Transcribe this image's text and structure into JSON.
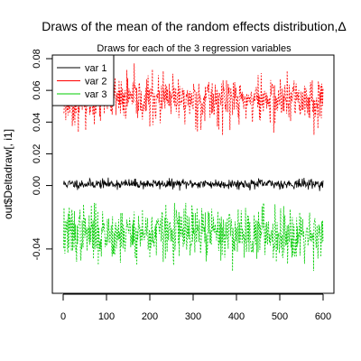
{
  "chart_data": {
    "type": "line",
    "title": "Draws of the mean of the random effects distribution,Δ",
    "subtitle": "Draws for each of the 3 regression variables",
    "xlabel": "",
    "ylabel": "out$Deltadraw[, i1]",
    "xlim": [
      0,
      600
    ],
    "ylim": [
      -0.06,
      0.08
    ],
    "x_ticks": [
      0,
      100,
      200,
      300,
      400,
      500,
      600
    ],
    "x_tick_labels": [
      "0",
      "100",
      "200",
      "300",
      "400",
      "500",
      "600"
    ],
    "y_ticks": [
      -0.04,
      0.0,
      0.02,
      0.04,
      0.06,
      0.08
    ],
    "y_tick_labels": [
      "-0.04",
      "0.00",
      "0.02",
      "0.04",
      "0.06",
      "0.08"
    ],
    "grid": false,
    "legend_position": "top-left",
    "n_draws": 600,
    "series": [
      {
        "name": "var 1",
        "color": "#000000",
        "dashed": false,
        "mean": 0.001,
        "sd": 0.0015,
        "min": -0.005,
        "max": 0.005,
        "seed": 11
      },
      {
        "name": "var 2",
        "color": "#ff0000",
        "dashed": true,
        "mean": 0.054,
        "sd": 0.0075,
        "min": 0.026,
        "max": 0.077,
        "seed": 23
      },
      {
        "name": "var 3",
        "color": "#00cc00",
        "dashed": true,
        "mean": -0.03,
        "sd": 0.0085,
        "min": -0.054,
        "max": -0.011,
        "seed": 37
      }
    ]
  }
}
